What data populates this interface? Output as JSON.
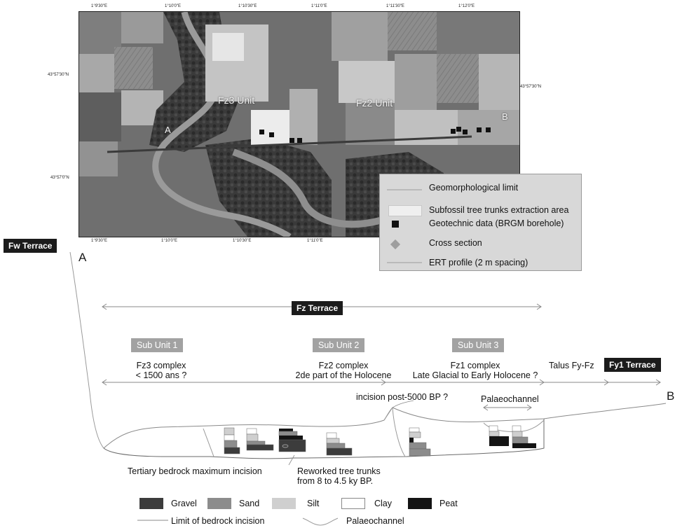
{
  "map": {
    "top_coords": [
      "1°9'30\"E",
      "1°10'0\"E",
      "1°10'30\"E",
      "1°11'0\"E",
      "1°11'30\"E",
      "1°12'0\"E"
    ],
    "bottom_coords": [
      "1°9'30\"E",
      "1°10'0\"E",
      "1°10'30\"E",
      "1°11'0\"E"
    ],
    "left_coords": [
      "43°57'30\"N",
      "43°57'0\"N"
    ],
    "right_coords": [
      "43°57'30\"N"
    ],
    "labels": {
      "fz3": "Fz3 Unit",
      "fz2": "Fz2 Unit",
      "a": "A",
      "b": "B"
    }
  },
  "map_legend": {
    "geomorph": "Geomorphological limit",
    "subfossil": "Subfossil tree trunks extraction area",
    "geotechnic": "Geotechnic data (BRGM borehole)",
    "cross_section": "Cross section",
    "ert": "ERT profile (2 m spacing)"
  },
  "section": {
    "fw_terrace": "Fw Terrace",
    "fz_terrace": "Fz Terrace",
    "fy1_terrace": "Fy1 Terrace",
    "point_a": "A",
    "point_b": "B",
    "sub1": "Sub Unit 1",
    "sub2": "Sub Unit 2",
    "sub3": "Sub Unit 3",
    "fz3_l1": "Fz3 complex",
    "fz3_l2": "< 1500 ans ?",
    "fz2_l1": "Fz2 complex",
    "fz2_l2": "2de part of the Holocene",
    "fz1_l1": "Fz1 complex",
    "fz1_l2": "Late Glacial to Early Holocene ?",
    "talus": "Talus Fy-Fz",
    "incision": "incision post-5000 BP ?",
    "palaeochannel": "Palaeochannel",
    "bedrock": "Tertiary bedrock maximum incision",
    "reworked_l1": "Reworked tree trunks",
    "reworked_l2": "from 8 to 4.5 ky BP."
  },
  "section_legend": {
    "gravel": "Gravel",
    "sand": "Sand",
    "silt": "Silt",
    "clay": "Clay",
    "peat": "Peat",
    "limit": "Limit of bedrock incision",
    "palaeochannel": "Palaeochannel"
  },
  "colors": {
    "gravel": "#3c3c3c",
    "sand": "#8c8c8c",
    "silt": "#cfcfcf",
    "clay": "#ffffff",
    "peat": "#141414"
  }
}
